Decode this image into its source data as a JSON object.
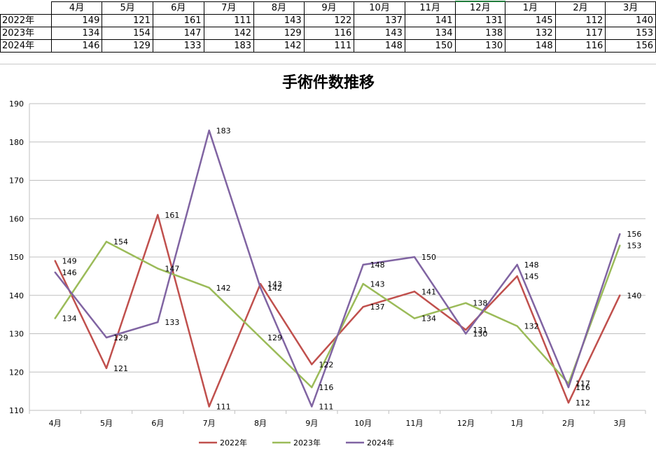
{
  "sheet": {
    "months": [
      "4月",
      "5月",
      "6月",
      "7月",
      "8月",
      "9月",
      "10月",
      "11月",
      "12月",
      "1月",
      "2月",
      "3月"
    ],
    "rows": [
      {
        "label": "2022年",
        "values": [
          149,
          121,
          161,
          111,
          143,
          122,
          137,
          141,
          131,
          145,
          112,
          140
        ]
      },
      {
        "label": "2023年",
        "values": [
          134,
          154,
          147,
          142,
          129,
          116,
          143,
          134,
          138,
          132,
          117,
          153
        ]
      },
      {
        "label": "2024年",
        "values": [
          146,
          129,
          133,
          183,
          142,
          111,
          148,
          150,
          130,
          148,
          116,
          156
        ]
      }
    ]
  },
  "chart_data": {
    "type": "line",
    "title": "手術件数推移",
    "categories": [
      "4月",
      "5月",
      "6月",
      "7月",
      "8月",
      "9月",
      "10月",
      "11月",
      "12月",
      "1月",
      "2月",
      "3月"
    ],
    "series": [
      {
        "name": "2022年",
        "color": "#C0504D",
        "values": [
          149,
          121,
          161,
          111,
          143,
          122,
          137,
          141,
          131,
          145,
          112,
          140
        ]
      },
      {
        "name": "2023年",
        "color": "#9BBB59",
        "values": [
          134,
          154,
          147,
          142,
          129,
          116,
          143,
          134,
          138,
          132,
          117,
          153
        ]
      },
      {
        "name": "2024年",
        "color": "#8064A2",
        "values": [
          146,
          129,
          133,
          183,
          142,
          111,
          148,
          150,
          130,
          148,
          116,
          156
        ]
      }
    ],
    "ylim": [
      110,
      190
    ],
    "yticks": [
      110,
      120,
      130,
      140,
      150,
      160,
      170,
      180,
      190
    ],
    "grid": true,
    "legend": "bottom",
    "data_labels": true
  }
}
